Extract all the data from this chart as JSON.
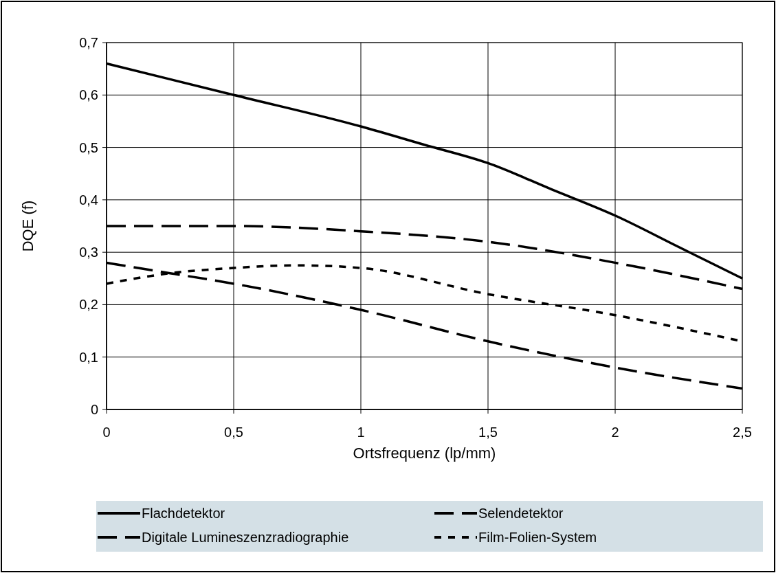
{
  "chart_data": {
    "type": "line",
    "xlabel": "Ortsfrequenz (lp/mm)",
    "ylabel": "DQE (f)",
    "xlim": [
      0,
      2.5
    ],
    "xticks": [
      0,
      {
        "value": 0.5,
        "label": "0,5"
      },
      1,
      {
        "value": 1.5,
        "label": "1,5"
      },
      2,
      {
        "value": 2.5,
        "label": "2,5"
      }
    ],
    "ylim": [
      0,
      0.7
    ],
    "yticks": [
      0,
      {
        "value": 0.1,
        "label": "0,1"
      },
      {
        "value": 0.2,
        "label": "0,2"
      },
      {
        "value": 0.3,
        "label": "0,3"
      },
      {
        "value": 0.4,
        "label": "0,4"
      },
      {
        "value": 0.5,
        "label": "0,5"
      },
      {
        "value": 0.6,
        "label": "0,6"
      },
      {
        "value": 0.7,
        "label": "0,7"
      }
    ],
    "grid": true,
    "legend": "bottom",
    "series": [
      {
        "name": "Flachdetektor",
        "color": "#000000",
        "line_style": "solid",
        "x": [
          0,
          0.5,
          1,
          1.25,
          1.5,
          1.75,
          2,
          2.25,
          2.5
        ],
        "values": [
          0.66,
          0.6,
          0.54,
          0.505,
          0.47,
          0.42,
          0.37,
          0.31,
          0.25
        ]
      },
      {
        "name": "Selendetektor",
        "color": "#000000",
        "line_style": "dashed",
        "x": [
          0,
          0.5,
          1,
          1.5,
          2,
          2.5
        ],
        "values": [
          0.35,
          0.35,
          0.34,
          0.32,
          0.28,
          0.23
        ]
      },
      {
        "name": "Digitale Lumineszenzradiographie",
        "color": "#000000",
        "line_style": "dashed",
        "x": [
          0,
          0.25,
          0.5,
          1,
          1.5,
          2,
          2.5
        ],
        "values": [
          0.28,
          0.26,
          0.24,
          0.19,
          0.13,
          0.08,
          0.04
        ]
      },
      {
        "name": "Film-Folien-System",
        "color": "#000000",
        "line_style": "dotted",
        "x": [
          0,
          0.25,
          0.5,
          0.75,
          1,
          1.5,
          2,
          2.5
        ],
        "values": [
          0.24,
          0.26,
          0.27,
          0.275,
          0.27,
          0.22,
          0.18,
          0.13
        ]
      }
    ]
  }
}
